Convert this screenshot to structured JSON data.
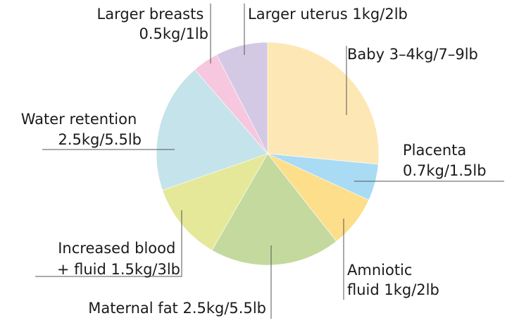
{
  "chart_data": {
    "type": "pie",
    "title": "",
    "start_angle_deg": 0,
    "direction": "clockwise",
    "slices": [
      {
        "name": "Baby",
        "label_lines": [
          "Baby 3–4kg/7–9lb"
        ],
        "value": 3.5,
        "color": "#fde8b5"
      },
      {
        "name": "Placenta",
        "label_lines": [
          "Placenta",
          "0.7kg/1.5lb"
        ],
        "value": 0.7,
        "color": "#a9dbf4"
      },
      {
        "name": "Amniotic fluid",
        "label_lines": [
          "Amniotic",
          "fluid 1kg/2lb"
        ],
        "value": 1.0,
        "color": "#fdde8a"
      },
      {
        "name": "Maternal fat",
        "label_lines": [
          "Maternal fat 2.5kg/5.5lb"
        ],
        "value": 2.5,
        "color": "#c4d99e"
      },
      {
        "name": "Increased blood + fluid",
        "label_lines": [
          "Increased blood",
          "+ fluid 1.5kg/3lb"
        ],
        "value": 1.5,
        "color": "#e5e898"
      },
      {
        "name": "Water retention",
        "label_lines": [
          "Water retention",
          "2.5kg/5.5lb"
        ],
        "value": 2.5,
        "color": "#c5e3ea"
      },
      {
        "name": "Larger breasts",
        "label_lines": [
          "Larger breasts",
          "0.5kg/1lb"
        ],
        "value": 0.5,
        "color": "#f6c7de"
      },
      {
        "name": "Larger uterus",
        "label_lines": [
          "Larger uterus 1kg/2lb"
        ],
        "value": 1.0,
        "color": "#d4c9e5"
      }
    ]
  }
}
